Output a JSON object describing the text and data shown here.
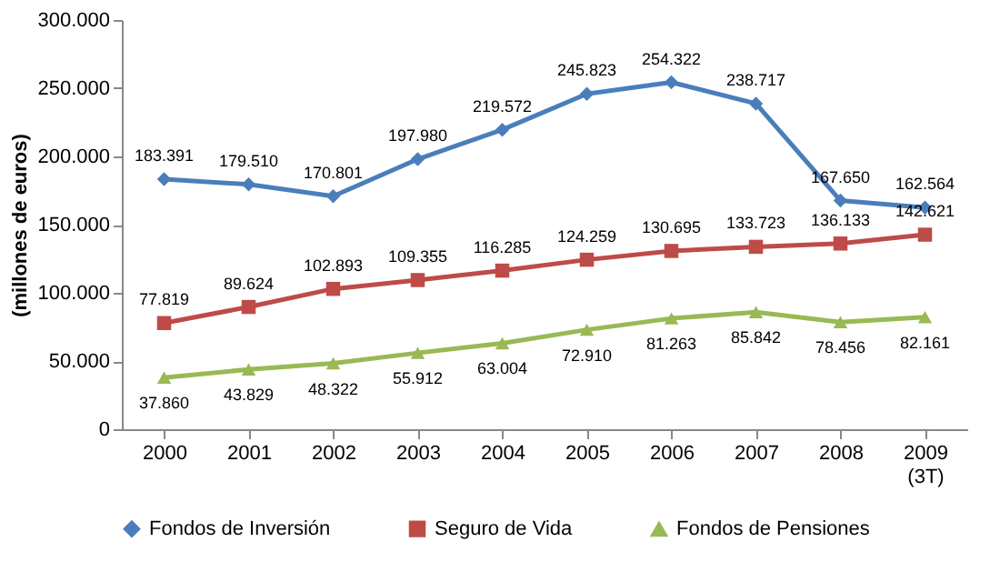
{
  "chart_data": {
    "type": "line",
    "ylabel": "(millones de euros)",
    "categories": [
      "2000",
      "2001",
      "2002",
      "2003",
      "2004",
      "2005",
      "2006",
      "2007",
      "2008",
      "2009\n(3T)"
    ],
    "ylim": [
      0,
      300000
    ],
    "yticks": [
      {
        "value": 0,
        "label": "0"
      },
      {
        "value": 50000,
        "label": "50.000"
      },
      {
        "value": 100000,
        "label": "100.000"
      },
      {
        "value": 150000,
        "label": "150.000"
      },
      {
        "value": 200000,
        "label": "200.000"
      },
      {
        "value": 250000,
        "label": "250.000"
      },
      {
        "value": 300000,
        "label": "300.000"
      }
    ],
    "grid": false,
    "legend": "bottom",
    "line_style": "solid",
    "series": [
      {
        "name": "Fondos de Inversión",
        "color": "#4a7ebb",
        "marker": "diamond",
        "values": [
          183391,
          179510,
          170801,
          197980,
          219572,
          245823,
          254322,
          238717,
          167650,
          162564
        ],
        "value_labels": [
          "183.391",
          "179.510",
          "170.801",
          "197.980",
          "219.572",
          "245.823",
          "254.322",
          "238.717",
          "167.650",
          "162.564"
        ]
      },
      {
        "name": "Seguro de Vida",
        "color": "#be4b48",
        "marker": "square",
        "values": [
          77819,
          89624,
          102893,
          109355,
          116285,
          124259,
          130695,
          133723,
          136133,
          142621
        ],
        "value_labels": [
          "77.819",
          "89.624",
          "102.893",
          "109.355",
          "116.285",
          "124.259",
          "130.695",
          "133.723",
          "136.133",
          "142.621"
        ]
      },
      {
        "name": "Fondos de Pensiones",
        "color": "#98b954",
        "marker": "triangle",
        "values": [
          37860,
          43829,
          48322,
          55912,
          63004,
          72910,
          81263,
          85842,
          78456,
          82161
        ],
        "value_labels": [
          "37.860",
          "43.829",
          "48.322",
          "55.912",
          "63.004",
          "72.910",
          "81.263",
          "85.842",
          "78.456",
          "82.161"
        ]
      }
    ]
  }
}
